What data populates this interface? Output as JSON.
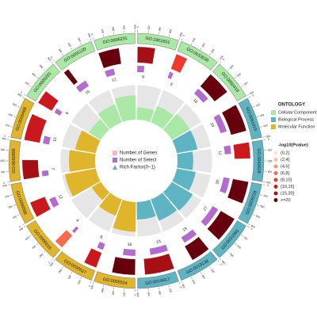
{
  "chart_data": {
    "type": "circular",
    "gene_lim": [
      0,
      800
    ],
    "gene_ticks": [
      0,
      200,
      400,
      600,
      800
    ],
    "select_lim": [
      0,
      40
    ],
    "rich_lim": [
      0,
      1
    ],
    "center_legend": [
      "Number of Genes",
      "Number of Select",
      "Rich Factor(0~1)"
    ],
    "legend_title": "ONTOLOGY",
    "pvalue_title": "-log10(Pvalue)",
    "pvalue_legend": [
      {
        "value": 2,
        "label": "(0,2]"
      },
      {
        "value": 4,
        "label": "(2,4]"
      },
      {
        "value": 6,
        "label": "(4,6]"
      },
      {
        "value": 8,
        "label": "(6,8]"
      },
      {
        "value": 10,
        "label": "(8,10]"
      },
      {
        "value": 15,
        "label": "(10,15]"
      },
      {
        "value": 20,
        "label": "(15,20]"
      },
      {
        "value": 20,
        "label": ">=20"
      }
    ],
    "pvalue_colors": [
      "#fde0d9",
      "#fcbba1",
      "#fc9272",
      "#fb6a4a",
      "#ef3b2c",
      "#cb181d",
      "#a50f15",
      "#67000d"
    ],
    "series": [
      {
        "name": "Cellular Component",
        "color": "#a9e8a5",
        "terms": [
          "GO:0005201",
          "GO:0055139",
          "GO:0006231",
          "GO:1901651",
          "GO:0033036",
          "GO:0050418"
        ],
        "genes": [
          300,
          120,
          450,
          380,
          250,
          520
        ],
        "select": [
          6,
          15,
          12,
          9,
          5,
          18
        ],
        "rich": [
          0.4,
          0.55,
          0.7,
          0.35,
          0.5,
          0.6
        ],
        "neglog10p": [
          12,
          25,
          22,
          18,
          9,
          21
        ]
      },
      {
        "name": "Biological Process",
        "color": "#5fb4c3",
        "terms": [
          "GO:0061919",
          "GO:0042628",
          "GO:0009228",
          "GO:0031965",
          "GO:0019138",
          "GO:0016817"
        ],
        "genes": [
          600,
          350,
          480,
          560,
          420,
          640
        ],
        "select": [
          24,
          11,
          20,
          27,
          19,
          23
        ],
        "rich": [
          0.6,
          0.45,
          0.55,
          0.7,
          0.65,
          0.5
        ],
        "neglog10p": [
          23,
          14,
          22,
          21,
          25,
          20
        ]
      },
      {
        "name": "Molecular Function",
        "color": "#e0b52b",
        "terms": [
          "GO:0005524",
          "GO:0030527",
          "GO:0000016",
          "GO:0006598",
          "GO:0050896",
          "GO:0006468"
        ],
        "genes": [
          500,
          280,
          200,
          340,
          420,
          580
        ],
        "select": [
          16,
          8,
          4,
          12,
          7,
          10
        ],
        "rich": [
          0.85,
          0.5,
          0.3,
          0.9,
          0.75,
          0.6
        ],
        "neglog10p": [
          24,
          13,
          7,
          11,
          19,
          12
        ]
      }
    ]
  }
}
